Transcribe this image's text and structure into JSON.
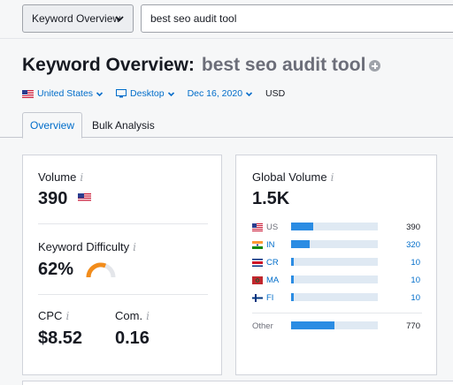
{
  "topbar": {
    "db_select": "Keyword Overview",
    "search_value": "best seo audit tool"
  },
  "header": {
    "title_prefix": "Keyword Overview:",
    "keyword": "best seo audit tool"
  },
  "filters": {
    "country": "United States",
    "device": "Desktop",
    "date": "Dec 16, 2020",
    "currency": "USD"
  },
  "tabs": [
    {
      "label": "Overview",
      "active": true
    },
    {
      "label": "Bulk Analysis",
      "active": false
    }
  ],
  "metrics": {
    "volume_label": "Volume",
    "volume_value": "390",
    "kd_label": "Keyword Difficulty",
    "kd_value": "62%",
    "kd_percent": 62,
    "cpc_label": "CPC",
    "cpc_value": "$8.52",
    "com_label": "Com.",
    "com_value": "0.16",
    "info_glyph": "i"
  },
  "global_volume": {
    "label": "Global Volume",
    "value": "1.5K",
    "countries": [
      {
        "code": "US",
        "value": "390",
        "share": 0.25,
        "link": false
      },
      {
        "code": "IN",
        "value": "320",
        "share": 0.21,
        "link": true
      },
      {
        "code": "CR",
        "value": "10",
        "share": 0.02,
        "link": true
      },
      {
        "code": "MA",
        "value": "10",
        "share": 0.02,
        "link": true
      },
      {
        "code": "FI",
        "value": "10",
        "share": 0.02,
        "link": true
      }
    ],
    "other": {
      "label": "Other",
      "value": "770",
      "share": 0.5
    }
  },
  "colors": {
    "accent": "#006dca",
    "bar": "#2b8ce3",
    "bar_bg": "#dfe9f3",
    "kd_orange": "#f28c1b"
  }
}
